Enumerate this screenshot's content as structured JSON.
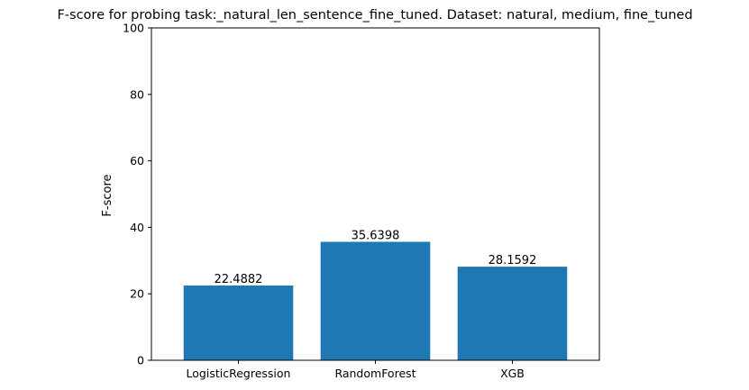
{
  "chart_data": {
    "type": "bar",
    "title": "F-score for probing task:_natural_len_sentence_fine_tuned. Dataset: natural, medium, fine_tuned",
    "xlabel": "",
    "ylabel": "F-score",
    "categories": [
      "LogisticRegression",
      "RandomForest",
      "XGB"
    ],
    "values": [
      22.4882,
      35.6398,
      28.1592
    ],
    "value_labels": [
      "22.4882",
      "35.6398",
      "28.1592"
    ],
    "ylim": [
      0,
      100
    ],
    "yticks": [
      0,
      20,
      40,
      60,
      80,
      100
    ],
    "ytick_labels": [
      "0",
      "20",
      "40",
      "60",
      "80",
      "100"
    ],
    "bar_color": "#1f77b4",
    "grid": false,
    "legend": "none"
  }
}
